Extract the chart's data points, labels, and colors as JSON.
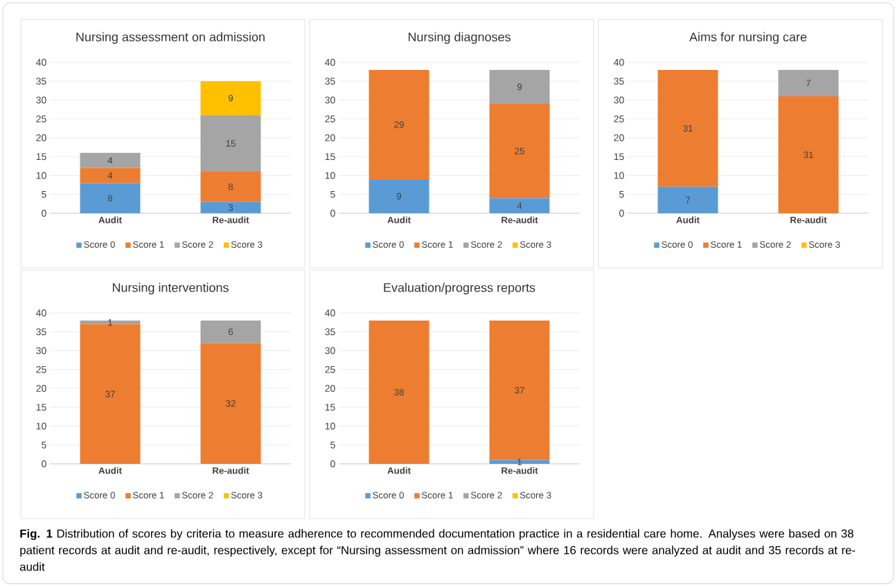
{
  "chart_data": [
    {
      "type": "bar",
      "stacked": true,
      "title": "Nursing assessment on admission",
      "categories": [
        "Audit",
        "Re-audit"
      ],
      "ylim": [
        0,
        40
      ],
      "yticks": [
        0,
        5,
        10,
        15,
        20,
        25,
        30,
        35,
        40
      ],
      "grid": "y",
      "legend": "bottom",
      "series": [
        {
          "name": "Score 0",
          "color": "#5b9bd5",
          "values": [
            8,
            3
          ],
          "value_labels": [
            "8",
            "3"
          ]
        },
        {
          "name": "Score 1",
          "color": "#ed7d31",
          "values": [
            4,
            8
          ],
          "value_labels": [
            "4",
            "8"
          ]
        },
        {
          "name": "Score 2",
          "color": "#a5a5a5",
          "values": [
            4,
            15
          ],
          "value_labels": [
            "4",
            "15"
          ]
        },
        {
          "name": "Score 3",
          "color": "#ffc000",
          "values": [
            0,
            9
          ],
          "value_labels": [
            null,
            "9"
          ]
        }
      ]
    },
    {
      "type": "bar",
      "stacked": true,
      "title": "Nursing diagnoses",
      "categories": [
        "Audit",
        "Re-audit"
      ],
      "ylim": [
        0,
        40
      ],
      "yticks": [
        0,
        5,
        10,
        15,
        20,
        25,
        30,
        35,
        40
      ],
      "grid": "y",
      "legend": "bottom",
      "series": [
        {
          "name": "Score 0",
          "color": "#5b9bd5",
          "values": [
            9,
            4
          ],
          "value_labels": [
            "9",
            "4"
          ]
        },
        {
          "name": "Score 1",
          "color": "#ed7d31",
          "values": [
            29,
            25
          ],
          "value_labels": [
            "29",
            "25"
          ]
        },
        {
          "name": "Score 2",
          "color": "#a5a5a5",
          "values": [
            0,
            9
          ],
          "value_labels": [
            null,
            "9"
          ]
        },
        {
          "name": "Score 3",
          "color": "#ffc000",
          "values": [
            0,
            0
          ],
          "value_labels": [
            null,
            null
          ]
        }
      ]
    },
    {
      "type": "bar",
      "stacked": true,
      "title": "Aims for nursing care",
      "categories": [
        "Audit",
        "Re-audit"
      ],
      "ylim": [
        0,
        40
      ],
      "yticks": [
        0,
        5,
        10,
        15,
        20,
        25,
        30,
        35,
        40
      ],
      "grid": "y",
      "legend": "bottom",
      "series": [
        {
          "name": "Score 0",
          "color": "#5b9bd5",
          "values": [
            7,
            0
          ],
          "value_labels": [
            "7",
            null
          ]
        },
        {
          "name": "Score 1",
          "color": "#ed7d31",
          "values": [
            31,
            31
          ],
          "value_labels": [
            "31",
            "31"
          ]
        },
        {
          "name": "Score 2",
          "color": "#a5a5a5",
          "values": [
            0,
            7
          ],
          "value_labels": [
            null,
            "7"
          ]
        },
        {
          "name": "Score 3",
          "color": "#ffc000",
          "values": [
            0,
            0
          ],
          "value_labels": [
            null,
            null
          ]
        }
      ]
    },
    {
      "type": "bar",
      "stacked": true,
      "title": "Nursing interventions",
      "categories": [
        "Audit",
        "Re-audit"
      ],
      "ylim": [
        0,
        40
      ],
      "yticks": [
        0,
        5,
        10,
        15,
        20,
        25,
        30,
        35,
        40
      ],
      "grid": "y",
      "legend": "bottom",
      "series": [
        {
          "name": "Score 0",
          "color": "#5b9bd5",
          "values": [
            0,
            0
          ],
          "value_labels": [
            null,
            null
          ]
        },
        {
          "name": "Score 1",
          "color": "#ed7d31",
          "values": [
            37,
            32
          ],
          "value_labels": [
            "37",
            "32"
          ]
        },
        {
          "name": "Score 2",
          "color": "#a5a5a5",
          "values": [
            1,
            6
          ],
          "value_labels": [
            "1",
            "6"
          ]
        },
        {
          "name": "Score 3",
          "color": "#ffc000",
          "values": [
            0,
            0
          ],
          "value_labels": [
            null,
            null
          ]
        }
      ]
    },
    {
      "type": "bar",
      "stacked": true,
      "title": "Evaluation/progress reports",
      "categories": [
        "Audit",
        "Re-audit"
      ],
      "ylim": [
        0,
        40
      ],
      "yticks": [
        0,
        5,
        10,
        15,
        20,
        25,
        30,
        35,
        40
      ],
      "grid": "y",
      "legend": "bottom",
      "annotations": [
        "**Fig. 1** Distribution of scores by criteria to measure adherence to recommended documentation practice in a residential care home. Analyses were based on 38 patient records at audit and re-audit, respectively, except for “Nursing assessment on admission” where 16 records were analyzed at audit and 35 records at re-audit"
      ],
      "series": [
        {
          "name": "Score 0",
          "color": "#5b9bd5",
          "values": [
            0,
            1
          ],
          "value_labels": [
            null,
            "1"
          ]
        },
        {
          "name": "Score 1",
          "color": "#ed7d31",
          "values": [
            38,
            37
          ],
          "value_labels": [
            "38",
            "37"
          ]
        },
        {
          "name": "Score 2",
          "color": "#a5a5a5",
          "values": [
            0,
            0
          ],
          "value_labels": [
            null,
            null
          ]
        },
        {
          "name": "Score 3",
          "color": "#ffc000",
          "values": [
            0,
            0
          ],
          "value_labels": [
            null,
            null
          ]
        }
      ]
    }
  ]
}
